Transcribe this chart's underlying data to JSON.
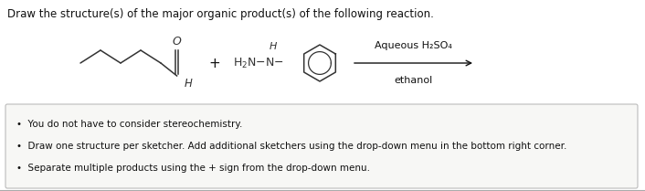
{
  "title": "Draw the structure(s) of the major organic product(s) of the following reaction.",
  "title_fontsize": 8.5,
  "background_color": "#ffffff",
  "reaction_condition_line1": "Aqueous H₂SO₄",
  "reaction_condition_line2": "ethanol",
  "bullet_points": [
    "You do not have to consider stereochemistry.",
    "Draw one structure per sketcher. Add additional sketchers using the drop-down menu in the bottom right corner.",
    "Separate multiple products using the + sign from the drop-down menu."
  ],
  "bullet_fontsize": 7.5,
  "box_facecolor": "#f7f7f5",
  "box_edgecolor": "#bbbbbb",
  "text_color": "#111111",
  "arrow_color": "#111111",
  "line_color": "#333333"
}
